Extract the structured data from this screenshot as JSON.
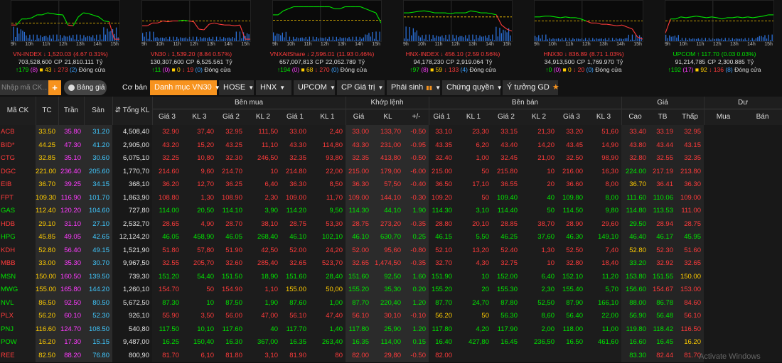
{
  "indices": [
    {
      "name": "VN-INDEX",
      "arrow": "↓",
      "value": "1,520.03",
      "change": "4.67 0.31%",
      "dir": "down",
      "vol": "703,528,600",
      "cp": "CP",
      "val": "21,810.111",
      "unit": "Tỷ",
      "adv": "179",
      "advc": "8",
      "dec": "43",
      "decf": "273",
      "decc": "2",
      "status": "Đóng cửa",
      "ref": 0.55,
      "line": [
        0.6,
        0.6,
        0.45,
        0.45,
        0.42,
        0.35,
        0.35,
        0.3,
        0.32,
        0.34,
        0.35,
        0.6,
        0.62,
        0.4,
        0.3,
        0.32,
        0.36,
        0.4,
        0.5,
        0.52,
        0.95,
        0.95
      ],
      "lineColor": "#ff3b3b",
      "vol_bars": "high"
    },
    {
      "name": "VN30",
      "arrow": "↓",
      "value": "1,539.20",
      "change": "8.84 0.57%",
      "dir": "down",
      "vol": "130,307,600",
      "cp": "CP",
      "val": "6,525.561",
      "unit": "Tỷ",
      "adv": "11",
      "advc": "0",
      "dec": "0",
      "decf": "19",
      "decc": "0",
      "status": "Đóng cửa",
      "ref": 0.5,
      "line": [
        0.62,
        0.62,
        0.55,
        0.55,
        0.5,
        0.52,
        0.5,
        0.5,
        0.48,
        0.5,
        0.52,
        0.7,
        0.72,
        0.58,
        0.55,
        0.58,
        0.6,
        0.6,
        0.62,
        0.6,
        0.95,
        0.95
      ],
      "lineColor": "#ff3b3b",
      "vol_bars": "mid"
    },
    {
      "name": "VNXAllShare",
      "arrow": "↓",
      "value": "2,596.01",
      "change": "11.93 0.46%",
      "dir": "down",
      "vol": "657,007,813",
      "cp": "CP",
      "val": "22,052.789",
      "unit": "Tỷ",
      "adv": "194",
      "advc": "0",
      "dec": "68",
      "decf": "270",
      "decc": "0",
      "status": "Đóng cửa",
      "ref": 0.48,
      "line": [
        0.35,
        0.35,
        0.25,
        0.2,
        0.15,
        0.15,
        0.15,
        0.15,
        0.15,
        0.15,
        0.15,
        0.15,
        0.2,
        0.2,
        0.15,
        0.15,
        0.15,
        0.15,
        0.2,
        0.25,
        0.3,
        0.55
      ],
      "lineColor": "#00e600",
      "vol_bars": "mid"
    },
    {
      "name": "HNX-INDEX",
      "arrow": "↓",
      "value": "456.10",
      "change": "2.59 0.56%",
      "dir": "down",
      "vol": "94,178,230",
      "cp": "CP",
      "val": "2,919.064",
      "unit": "Tỷ",
      "adv": "97",
      "advc": "8",
      "dec": "59",
      "decf": "133",
      "decc": "4",
      "status": "Đóng cửa",
      "ref": 0.4,
      "line": [
        0.3,
        0.3,
        0.28,
        0.26,
        0.25,
        0.27,
        0.3,
        0.3,
        0.3,
        0.32,
        0.3,
        0.3,
        0.3,
        0.25,
        0.27,
        0.3,
        0.3,
        0.32,
        0.35,
        0.6,
        0.7,
        0.75
      ],
      "lineColor": "#00e600",
      "vol_bars": "high"
    },
    {
      "name": "HNX30",
      "arrow": "↓",
      "value": "836.89",
      "change": "8.71 1.03%",
      "dir": "down",
      "vol": "34,913,500",
      "cp": "CP",
      "val": "1,769.970",
      "unit": "Tỷ",
      "adv": "0",
      "advc": "0",
      "dec": "0",
      "decf": "20",
      "decc": "0",
      "status": "Đóng cửa",
      "ref": 0.5,
      "line": [
        0.4,
        0.4,
        0.38,
        0.38,
        0.4,
        0.42,
        0.4,
        0.42,
        0.42,
        0.45,
        0.5,
        0.55,
        0.55,
        0.58,
        0.58,
        0.6,
        0.62,
        0.6,
        0.65,
        0.7,
        0.9,
        0.95
      ],
      "lineColor": "#ff3b3b",
      "vol_bars": "low"
    },
    {
      "name": "UPCOM",
      "arrow": "↑",
      "value": "117.70",
      "change": "0.03 0.03%",
      "dir": "up",
      "vol": "91,214,785",
      "cp": "CP",
      "val": "2,300.885",
      "unit": "Tỷ",
      "adv": "192",
      "advc": "17",
      "dec": "92",
      "decf": "136",
      "decc": "8",
      "status": "Đóng cửa",
      "ref": 0.5,
      "line": [
        0.8,
        0.45,
        0.45,
        0.4,
        0.42,
        0.4,
        0.38,
        0.4,
        0.42,
        0.4,
        0.42,
        0.45,
        0.42,
        0.42,
        0.4,
        0.42,
        0.4,
        0.42,
        0.4,
        0.38,
        0.35,
        0.35
      ],
      "lineColor": "#ff3b3b",
      "vol_bars": "low"
    }
  ],
  "hours": [
    "9h",
    "10h",
    "11h",
    "12h",
    "13h",
    "14h",
    "15h"
  ],
  "toolbar": {
    "search_placeholder": "Nhập mã CK...",
    "plus": "+",
    "bang_gia": "Bảng giá",
    "co_ban": "Cơ bản",
    "tabs": [
      "Danh mục VN30",
      "HOSE",
      "HNX",
      "UPCOM",
      "CP Giá trị",
      "Phái sinh",
      "Chứng quyền",
      "Ý tưởng GD"
    ]
  },
  "header": {
    "ma_ck": "Mã CK",
    "tc": "TC",
    "tran": "Trần",
    "san": "Sàn",
    "tong_kl": "Tổng KL",
    "ben_mua": "Bên mua",
    "khop_lenh": "Khớp lệnh",
    "ben_ban": "Bên bán",
    "gia": "Giá",
    "du": "Dư",
    "mua_cols": [
      "Giá 3",
      "KL 3",
      "Giá 2",
      "KL 2",
      "Giá 1",
      "KL 1"
    ],
    "khop_cols": [
      "Giá",
      "KL",
      "+/-"
    ],
    "ban_cols": [
      "Giá 1",
      "KL 1",
      "Giá 2",
      "KL 2",
      "Giá 3",
      "KL 3"
    ],
    "gia_cols": [
      "Cao",
      "TB",
      "Thấp"
    ],
    "du_cols": [
      "Mua",
      "Bán"
    ]
  },
  "rows": [
    {
      "sym": "ACB",
      "c": "d",
      "tc": "33.50",
      "tran": "35.80",
      "san": "31.20",
      "kl": "4,508,40",
      "b3": "32.90",
      "bk3": "37,40",
      "b2": "32.95",
      "bk2": "111,50",
      "b1": "33.00",
      "bk1": "2,40",
      "p": "33.00",
      "pk": "133,70",
      "ch": "-0.50",
      "s1": "33.10",
      "sk1": "23,30",
      "s2": "33.15",
      "sk2": "21,30",
      "s3": "33.20",
      "sk3": "51,60",
      "hi": "33.40",
      "avg": "33.19",
      "lo": "32.95",
      "hic": "d",
      "avgc": "d",
      "loc": "d"
    },
    {
      "sym": "BID*",
      "c": "d",
      "tc": "44.25",
      "tran": "47.30",
      "san": "41.20",
      "kl": "2,905,00",
      "b3": "43.20",
      "bk3": "15,20",
      "b2": "43.25",
      "bk2": "11,10",
      "b1": "43.30",
      "bk1": "114,80",
      "p": "43.30",
      "pk": "231,00",
      "ch": "-0.95",
      "s1": "43.35",
      "sk1": "6,20",
      "s2": "43.40",
      "sk2": "14,20",
      "s3": "43.45",
      "sk3": "14,90",
      "hi": "43.80",
      "avg": "43.44",
      "lo": "43.15",
      "hic": "d",
      "avgc": "d",
      "loc": "d"
    },
    {
      "sym": "CTG",
      "c": "d",
      "tc": "32.85",
      "tran": "35.10",
      "san": "30.60",
      "kl": "6,075,10",
      "b3": "32.25",
      "bk3": "10,80",
      "b2": "32.30",
      "bk2": "246,50",
      "b1": "32.35",
      "bk1": "93,80",
      "p": "32.35",
      "pk": "413,80",
      "ch": "-0.50",
      "s1": "32.40",
      "sk1": "1,00",
      "s2": "32.45",
      "sk2": "21,00",
      "s3": "32.50",
      "sk3": "98,90",
      "hi": "32.80",
      "avg": "32.55",
      "lo": "32.35",
      "hic": "d",
      "avgc": "d",
      "loc": "d"
    },
    {
      "sym": "DGC",
      "c": "d",
      "tc": "221.00",
      "tran": "236.40",
      "san": "205.60",
      "kl": "1,770,70",
      "b3": "214.60",
      "bk3": "9,60",
      "b2": "214.70",
      "bk2": "10",
      "b1": "214.80",
      "bk1": "22,00",
      "p": "215.00",
      "pk": "179,00",
      "ch": "-6.00",
      "s1": "215.00",
      "sk1": "50",
      "s2": "215.80",
      "sk2": "10",
      "s3": "216.00",
      "sk3": "16,30",
      "hi": "224.00",
      "avg": "217.19",
      "lo": "213.80",
      "hic": "u",
      "avgc": "d",
      "loc": "d"
    },
    {
      "sym": "EIB",
      "c": "d",
      "tc": "36.70",
      "tran": "39.25",
      "san": "34.15",
      "kl": "368,10",
      "b3": "36.20",
      "bk3": "12,70",
      "b2": "36.25",
      "bk2": "6,40",
      "b1": "36.30",
      "bk1": "8,50",
      "p": "36.30",
      "pk": "57,50",
      "ch": "-0.40",
      "s1": "36.50",
      "sk1": "17,10",
      "s2": "36.55",
      "sk2": "20",
      "s3": "36.60",
      "sk3": "8,00",
      "hi": "36.70",
      "avg": "36.41",
      "lo": "36.30",
      "hic": "r",
      "avgc": "d",
      "loc": "d"
    },
    {
      "sym": "FPT",
      "c": "d",
      "tc": "109.30",
      "tran": "116.90",
      "san": "101.70",
      "kl": "1,863,90",
      "b3": "108.80",
      "bk3": "1,30",
      "b2": "108.90",
      "bk2": "2,30",
      "b1": "109.00",
      "bk1": "11,70",
      "p": "109.00",
      "pk": "144,10",
      "ch": "-0.30",
      "s1": "109.20",
      "sk1": "50",
      "s2": "109.40",
      "sk2": "40",
      "s3": "109.80",
      "sk3": "8,00",
      "hi": "111.60",
      "avg": "110.06",
      "lo": "109.00",
      "hic": "u",
      "avgc": "u",
      "loc": "d"
    },
    {
      "sym": "GAS",
      "c": "u",
      "tc": "112.40",
      "tran": "120.20",
      "san": "104.60",
      "kl": "727,80",
      "b3": "114.00",
      "bk3": "20,50",
      "b2": "114.10",
      "bk2": "3,90",
      "b1": "114.20",
      "bk1": "9,50",
      "p": "114.30",
      "pk": "44,10",
      "ch": "1.90",
      "s1": "114.30",
      "sk1": "3,10",
      "s2": "114.40",
      "sk2": "50",
      "s3": "114.50",
      "sk3": "9,80",
      "hi": "114.80",
      "avg": "113.53",
      "lo": "111.00",
      "hic": "u",
      "avgc": "u",
      "loc": "d"
    },
    {
      "sym": "HDB",
      "c": "d",
      "tc": "29.10",
      "tran": "31.10",
      "san": "27.10",
      "kl": "2,532,70",
      "b3": "28.65",
      "bk3": "4,90",
      "b2": "28.70",
      "bk2": "38,10",
      "b1": "28.75",
      "bk1": "53,30",
      "p": "28.75",
      "pk": "273,20",
      "ch": "-0.35",
      "s1": "28.80",
      "sk1": "20,10",
      "s2": "28.85",
      "sk2": "38,70",
      "s3": "28.90",
      "sk3": "29,60",
      "hi": "29.50",
      "avg": "28.94",
      "lo": "28.75",
      "hic": "u",
      "avgc": "d",
      "loc": "d"
    },
    {
      "sym": "HPG",
      "c": "u",
      "tc": "45.85",
      "tran": "49.05",
      "san": "42.65",
      "kl": "12,124,20",
      "b3": "46.05",
      "bk3": "458,90",
      "b2": "46.05",
      "bk2": "268,40",
      "b1": "46.10",
      "bk1": "102,10",
      "p": "46.10",
      "pk": "630,70",
      "ch": "0.25",
      "s1": "46.15",
      "sk1": "5,50",
      "s2": "46.25",
      "sk2": "37,60",
      "s3": "46.30",
      "sk3": "149,10",
      "hi": "46.40",
      "avg": "46.17",
      "lo": "45.95",
      "hic": "u",
      "avgc": "u",
      "loc": "u"
    },
    {
      "sym": "KDH",
      "c": "d",
      "tc": "52.80",
      "tran": "56.40",
      "san": "49.15",
      "kl": "1,521,90",
      "b3": "51.80",
      "bk3": "57,80",
      "b2": "51.90",
      "bk2": "42,50",
      "b1": "52.00",
      "bk1": "24,20",
      "p": "52.00",
      "pk": "95,60",
      "ch": "-0.80",
      "s1": "52.10",
      "sk1": "13,20",
      "s2": "52.40",
      "sk2": "1,30",
      "s3": "52.50",
      "sk3": "7,40",
      "hi": "52.80",
      "avg": "52.30",
      "lo": "51.60",
      "hic": "r",
      "avgc": "d",
      "loc": "d"
    },
    {
      "sym": "MBB",
      "c": "d",
      "tc": "33.00",
      "tran": "35.30",
      "san": "30.70",
      "kl": "9,967,50",
      "b3": "32.55",
      "bk3": "205,70",
      "b2": "32.60",
      "bk2": "285,40",
      "b1": "32.65",
      "bk1": "523,70",
      "p": "32.65",
      "pk": "1,474,50",
      "ch": "-0.35",
      "s1": "32.70",
      "sk1": "4,30",
      "s2": "32.75",
      "sk2": "10",
      "s3": "32.80",
      "sk3": "18,40",
      "hi": "33.20",
      "avg": "32.92",
      "lo": "32.65",
      "hic": "u",
      "avgc": "d",
      "loc": "d"
    },
    {
      "sym": "MSN",
      "c": "u",
      "tc": "150.00",
      "tran": "160.50",
      "san": "139.50",
      "kl": "739,30",
      "b3": "151.20",
      "bk3": "54,40",
      "b2": "151.50",
      "bk2": "18,90",
      "b1": "151.60",
      "bk1": "28,40",
      "p": "151.60",
      "pk": "92,50",
      "ch": "1.60",
      "s1": "151.90",
      "sk1": "10",
      "s2": "152.00",
      "sk2": "6,40",
      "s3": "152.10",
      "sk3": "11,20",
      "hi": "153.80",
      "avg": "151.55",
      "lo": "150.00",
      "hic": "u",
      "avgc": "u",
      "loc": "r"
    },
    {
      "sym": "MWG",
      "c": "u",
      "tc": "155.00",
      "tran": "165.80",
      "san": "144.20",
      "kl": "1,260,10",
      "b3": "154.70",
      "bk3": "50",
      "b2": "154.90",
      "bk2": "1,10",
      "b1": "155.00",
      "bk1": "50,00",
      "p": "155.20",
      "pk": "35,30",
      "ch": "0.20",
      "s1": "155.20",
      "sk1": "20",
      "s2": "155.30",
      "sk2": "2,30",
      "s3": "155.40",
      "sk3": "5,70",
      "hi": "156.60",
      "avg": "154.67",
      "lo": "153.00",
      "hic": "u",
      "avgc": "d",
      "loc": "d"
    },
    {
      "sym": "NVL",
      "c": "u",
      "tc": "86.50",
      "tran": "92.50",
      "san": "80.50",
      "kl": "5,672,50",
      "b3": "87.30",
      "bk3": "10",
      "b2": "87.50",
      "bk2": "1,90",
      "b1": "87.60",
      "bk1": "1,00",
      "p": "87.70",
      "pk": "220,40",
      "ch": "1.20",
      "s1": "87.70",
      "sk1": "24,70",
      "s2": "87.80",
      "sk2": "52,50",
      "s3": "87.90",
      "sk3": "166,10",
      "hi": "88.00",
      "avg": "86.78",
      "lo": "84.60",
      "hic": "u",
      "avgc": "u",
      "loc": "d"
    },
    {
      "sym": "PLX",
      "c": "d",
      "tc": "56.20",
      "tran": "60.10",
      "san": "52.30",
      "kl": "926,10",
      "b3": "55.90",
      "bk3": "3,50",
      "b2": "56.00",
      "bk2": "47,00",
      "b1": "56.10",
      "bk1": "47,40",
      "p": "56.10",
      "pk": "30,10",
      "ch": "-0.10",
      "s1": "56.20",
      "sk1": "50",
      "s2": "56.30",
      "sk2": "8,60",
      "s3": "56.40",
      "sk3": "22,00",
      "hi": "56.90",
      "avg": "56.48",
      "lo": "56.10",
      "hic": "u",
      "avgc": "u",
      "loc": "d"
    },
    {
      "sym": "PNJ",
      "c": "u",
      "tc": "116.60",
      "tran": "124.70",
      "san": "108.50",
      "kl": "540,80",
      "b3": "117.50",
      "bk3": "10,10",
      "b2": "117.60",
      "bk2": "40",
      "b1": "117.70",
      "bk1": "1,40",
      "p": "117.80",
      "pk": "25,90",
      "ch": "1.20",
      "s1": "117.80",
      "sk1": "4,20",
      "s2": "117.90",
      "sk2": "2,00",
      "s3": "118.00",
      "sk3": "11,00",
      "hi": "119.80",
      "avg": "118.42",
      "lo": "116.50",
      "hic": "u",
      "avgc": "u",
      "loc": "d"
    },
    {
      "sym": "POW",
      "c": "u",
      "tc": "16.20",
      "tran": "17.30",
      "san": "15.15",
      "kl": "9,487,00",
      "b3": "16.25",
      "bk3": "150,40",
      "b2": "16.30",
      "bk2": "367,00",
      "b1": "16.35",
      "bk1": "263,40",
      "p": "16.35",
      "pk": "114,00",
      "ch": "0.15",
      "s1": "16.40",
      "sk1": "427,80",
      "s2": "16.45",
      "sk2": "236,50",
      "s3": "16.50",
      "sk3": "461,60",
      "hi": "16.60",
      "avg": "16.45",
      "lo": "16.20",
      "hic": "u",
      "avgc": "u",
      "loc": "r"
    },
    {
      "sym": "REE",
      "c": "d",
      "tc": "82.50",
      "tran": "88.20",
      "san": "76.80",
      "kl": "800,90",
      "b3": "81.70",
      "bk3": "6,10",
      "b2": "81.80",
      "bk2": "3,10",
      "b1": "81.90",
      "bk1": "80",
      "p": "82.00",
      "pk": "29,80",
      "ch": "-0.50",
      "s1": "82.00",
      "sk1": "",
      "s2": "",
      "sk2": "",
      "s3": "",
      "sk3": "",
      "hi": "83.30",
      "avg": "82.44",
      "lo": "81.70",
      "hic": "u",
      "avgc": "d",
      "loc": "d"
    }
  ],
  "watermark": "Activate Windows",
  "colors": {
    "up": "#00e600",
    "down": "#ff3b3b",
    "ref": "#ffcc00",
    "ceil": "#ff3bff",
    "floor": "#40c8ff",
    "accent": "#f7931e"
  }
}
